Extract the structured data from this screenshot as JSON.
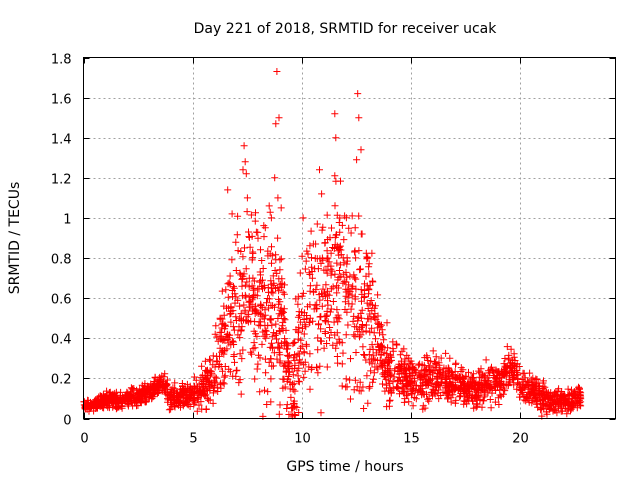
{
  "chart_data": {
    "type": "scatter",
    "title": "Day 221 of 2018, SRMTID for receiver ucak",
    "xlabel": "GPS time / hours",
    "ylabel": "SRMTID / TECUs",
    "xlim": [
      0,
      24.35
    ],
    "ylim": [
      0,
      1.8
    ],
    "xticks": [
      0,
      5,
      10,
      15,
      20
    ],
    "yticks": [
      0,
      0.2,
      0.4,
      0.6,
      0.8,
      1,
      1.2,
      1.4,
      1.6,
      1.8
    ],
    "xtick_labels": [
      "0",
      "5",
      "10",
      "15",
      "20"
    ],
    "ytick_labels": [
      "0",
      "0.2",
      "0.4",
      "0.6",
      "0.8",
      "1",
      "1.2",
      "1.4",
      "1.6",
      "1.8"
    ],
    "grid": true,
    "marker": "+",
    "marker_color": "#ff0000",
    "series": [
      {
        "name": "SRMTID",
        "profile_x": [
          0,
          1,
          2,
          3,
          3.6,
          4,
          5,
          5.5,
          6,
          6.5,
          7,
          7.5,
          8,
          8.5,
          9,
          9.3,
          9.6,
          10,
          10.5,
          11,
          11.5,
          12,
          12.5,
          13,
          13.5,
          14,
          15,
          16,
          17,
          18,
          19,
          19.5,
          20,
          21,
          22,
          22.8
        ],
        "profile_y": [
          0.06,
          0.09,
          0.1,
          0.13,
          0.2,
          0.1,
          0.12,
          0.15,
          0.25,
          0.4,
          0.55,
          0.6,
          0.55,
          0.5,
          0.55,
          0.3,
          0.2,
          0.45,
          0.55,
          0.6,
          0.65,
          0.6,
          0.55,
          0.5,
          0.35,
          0.25,
          0.2,
          0.2,
          0.17,
          0.15,
          0.18,
          0.25,
          0.18,
          0.1,
          0.08,
          0.1
        ],
        "spread_x": [
          0,
          5,
          5.8,
          6.5,
          7,
          8,
          9,
          9.4,
          10,
          11,
          12,
          13,
          13.5,
          14.5,
          16,
          19,
          22.8
        ],
        "spread_y": [
          0.02,
          0.05,
          0.1,
          0.2,
          0.3,
          0.35,
          0.35,
          0.12,
          0.3,
          0.35,
          0.35,
          0.3,
          0.15,
          0.1,
          0.08,
          0.07,
          0.04
        ],
        "outliers": [
          [
            8.85,
            1.73
          ],
          [
            8.95,
            1.5
          ],
          [
            8.8,
            1.47
          ],
          [
            12.55,
            1.62
          ],
          [
            12.6,
            1.5
          ],
          [
            11.5,
            1.52
          ],
          [
            11.55,
            1.4
          ],
          [
            12.7,
            1.34
          ],
          [
            12.5,
            1.29
          ],
          [
            7.35,
            1.36
          ],
          [
            7.4,
            1.28
          ],
          [
            7.45,
            1.22
          ],
          [
            7.3,
            1.24
          ],
          [
            8.75,
            1.2
          ],
          [
            10.8,
            1.24
          ],
          [
            11.5,
            1.21
          ],
          [
            6.6,
            1.14
          ],
          [
            7.5,
            1.1
          ],
          [
            8.9,
            1.1
          ],
          [
            10.9,
            1.12
          ],
          [
            6.8,
            1.02
          ],
          [
            8.5,
            1.06
          ],
          [
            12.3,
            1.01
          ],
          [
            11.95,
            1.01
          ],
          [
            10.05,
            1.0
          ],
          [
            9.05,
            1.05
          ],
          [
            8.6,
            1.0
          ],
          [
            10.7,
            0.97
          ],
          [
            11.35,
            0.95
          ],
          [
            12.75,
            0.92
          ],
          [
            9.4,
            0.02
          ],
          [
            9.5,
            0.02
          ],
          [
            9.65,
            0.02
          ],
          [
            9.85,
            0.03
          ],
          [
            9.3,
            0.05
          ]
        ],
        "point_count": 2400,
        "x_range": [
          0,
          22.8
        ]
      }
    ]
  }
}
